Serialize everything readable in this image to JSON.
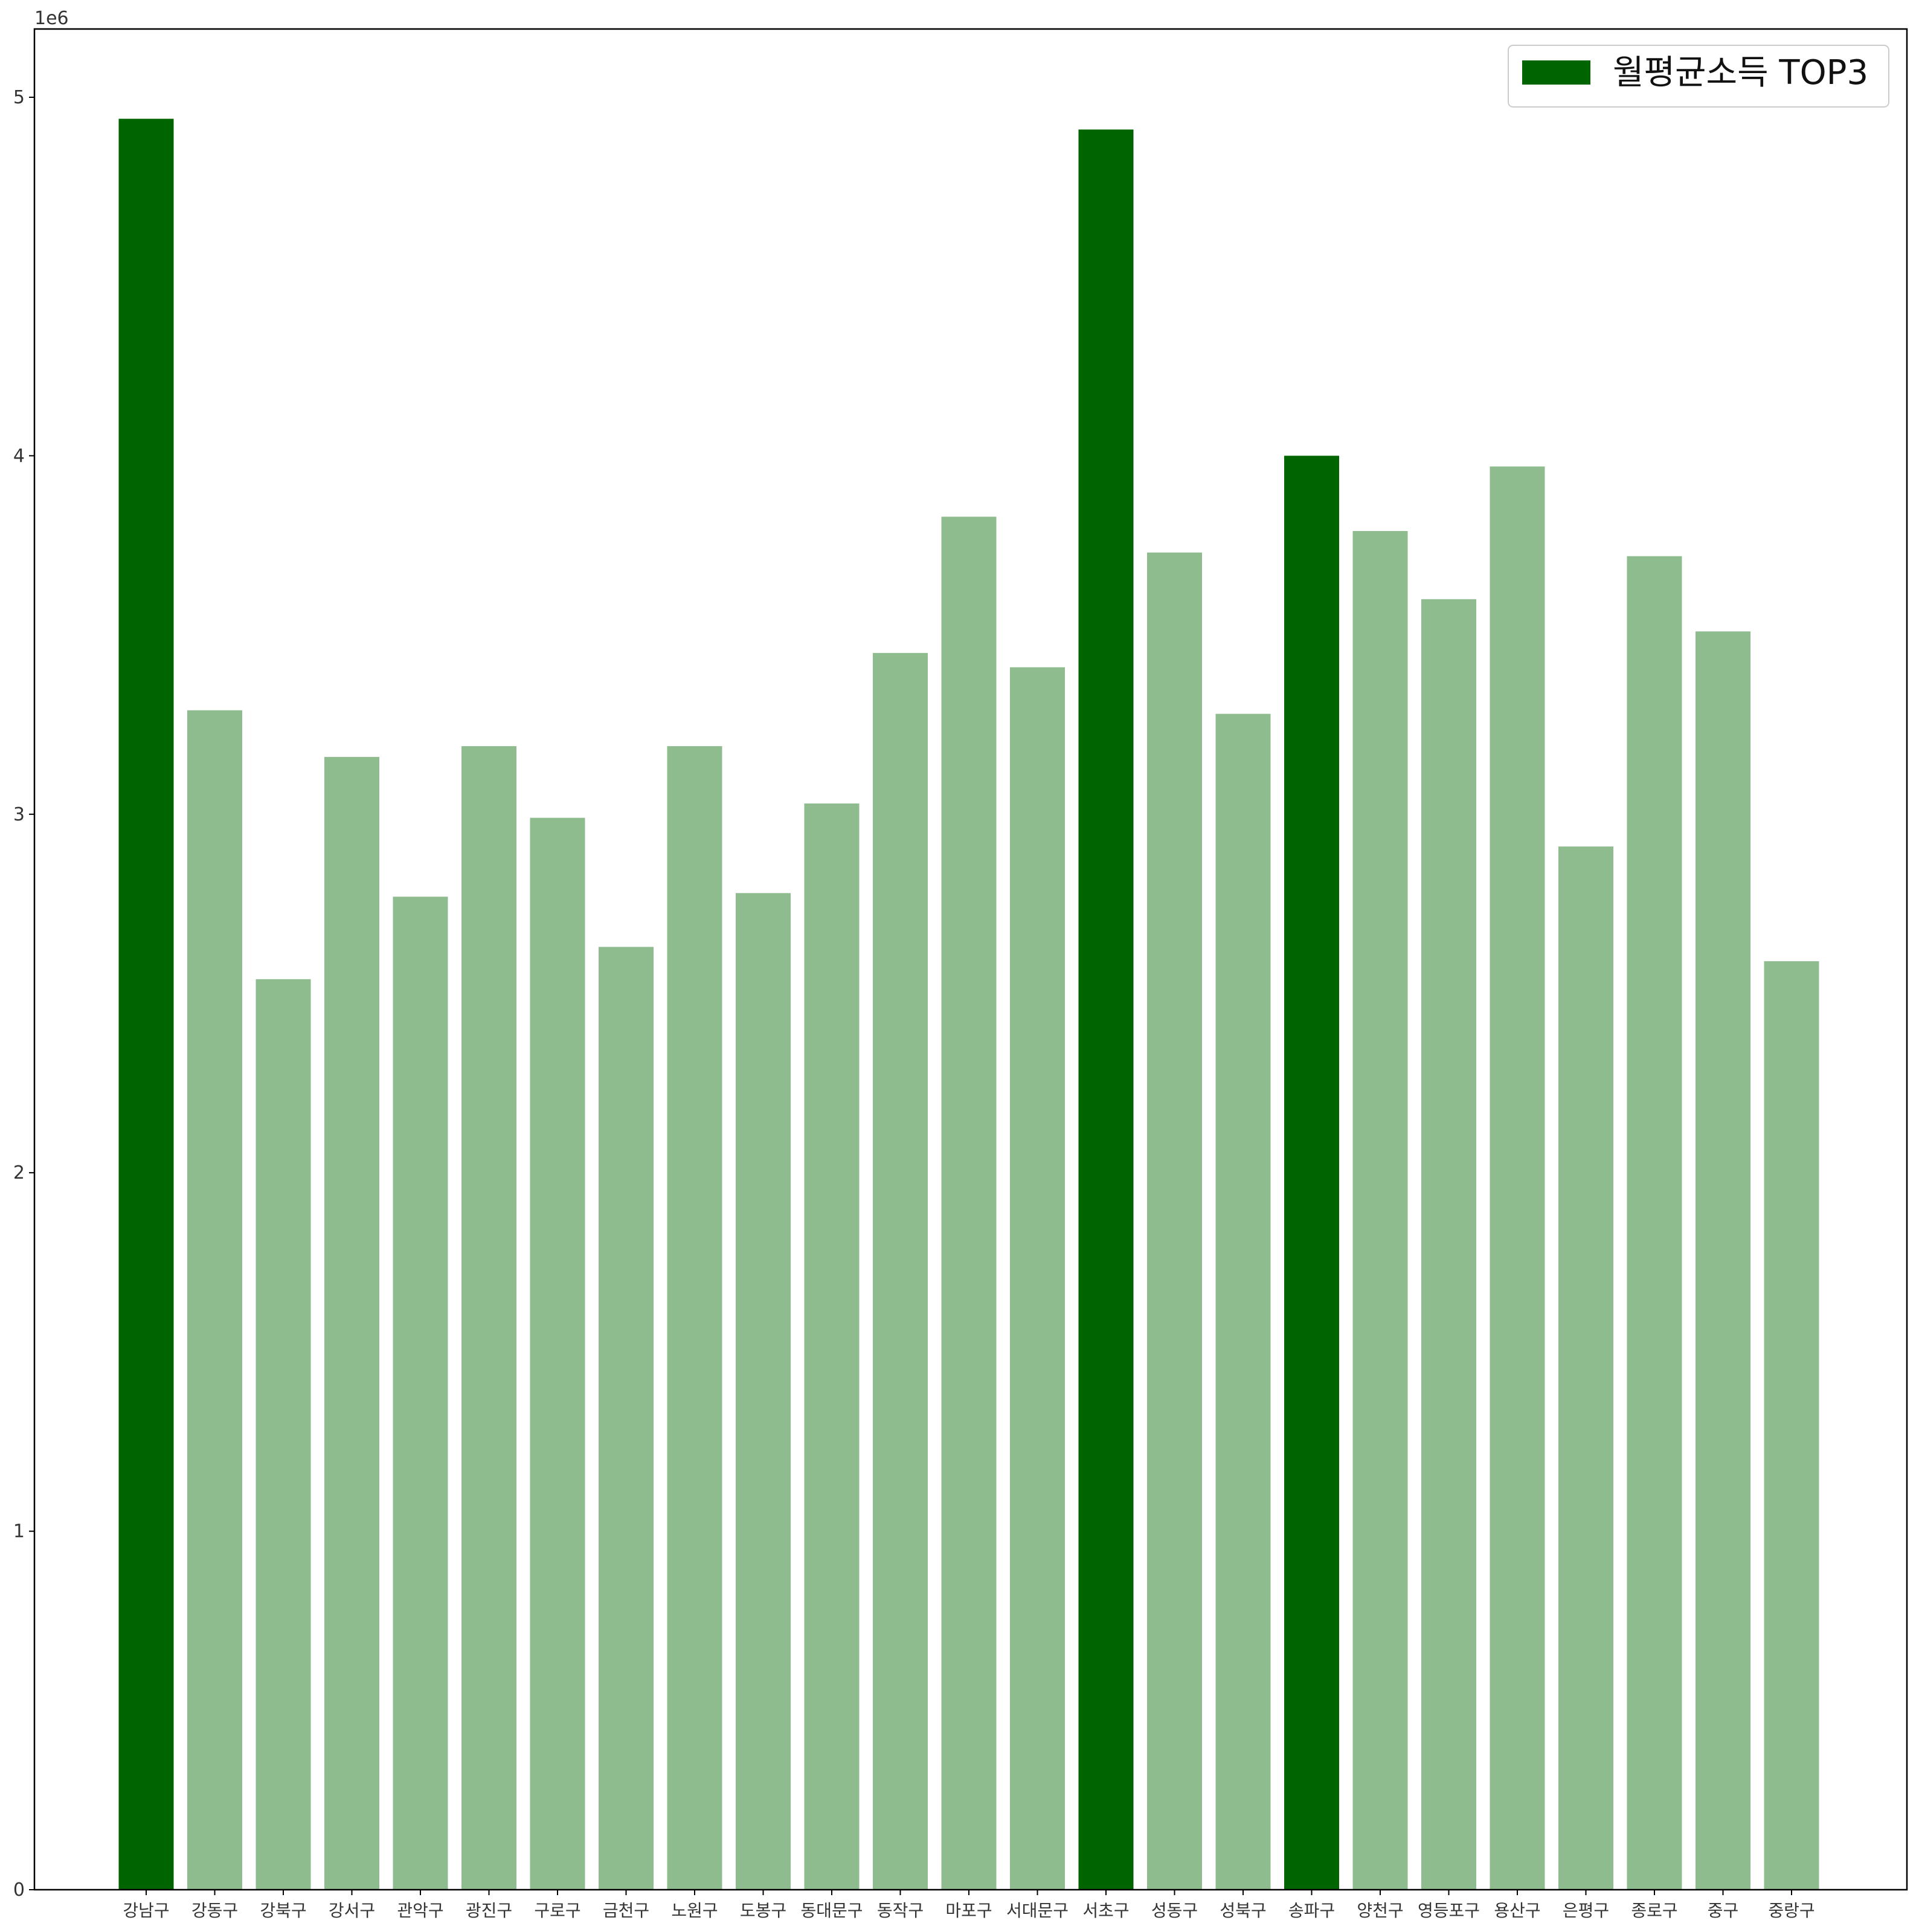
{
  "chart_data": {
    "type": "bar",
    "categories": [
      "강남구",
      "강동구",
      "강북구",
      "강서구",
      "관악구",
      "광진구",
      "구로구",
      "금천구",
      "노원구",
      "도봉구",
      "동대문구",
      "동작구",
      "마포구",
      "서대문구",
      "서초구",
      "성동구",
      "성북구",
      "송파구",
      "양천구",
      "영등포구",
      "용산구",
      "은평구",
      "종로구",
      "중구",
      "중랑구"
    ],
    "values": [
      4940000,
      3290000,
      2540000,
      3160000,
      2770000,
      3190000,
      2990000,
      2630000,
      3190000,
      2780000,
      3030000,
      3450000,
      3830000,
      3410000,
      4910000,
      3730000,
      3280000,
      4000000,
      3790000,
      3600000,
      3970000,
      2910000,
      3720000,
      3510000,
      2590000
    ],
    "highlight": [
      true,
      false,
      false,
      false,
      false,
      false,
      false,
      false,
      false,
      false,
      false,
      false,
      false,
      false,
      true,
      false,
      false,
      true,
      false,
      false,
      false,
      false,
      false,
      false,
      false
    ],
    "colors": {
      "highlight": "#006400",
      "normal": "#8fbc8f"
    },
    "series": [
      {
        "name": "월평균소득 TOP3",
        "color": "#006400"
      }
    ],
    "y_ticks": [
      "0",
      "1",
      "2",
      "3",
      "4",
      "5"
    ],
    "y_offset_text": "1e6",
    "ylim": [
      0,
      5200000
    ],
    "title": "",
    "xlabel": "",
    "ylabel": "",
    "grid": false,
    "legend_placement": "upper right"
  }
}
